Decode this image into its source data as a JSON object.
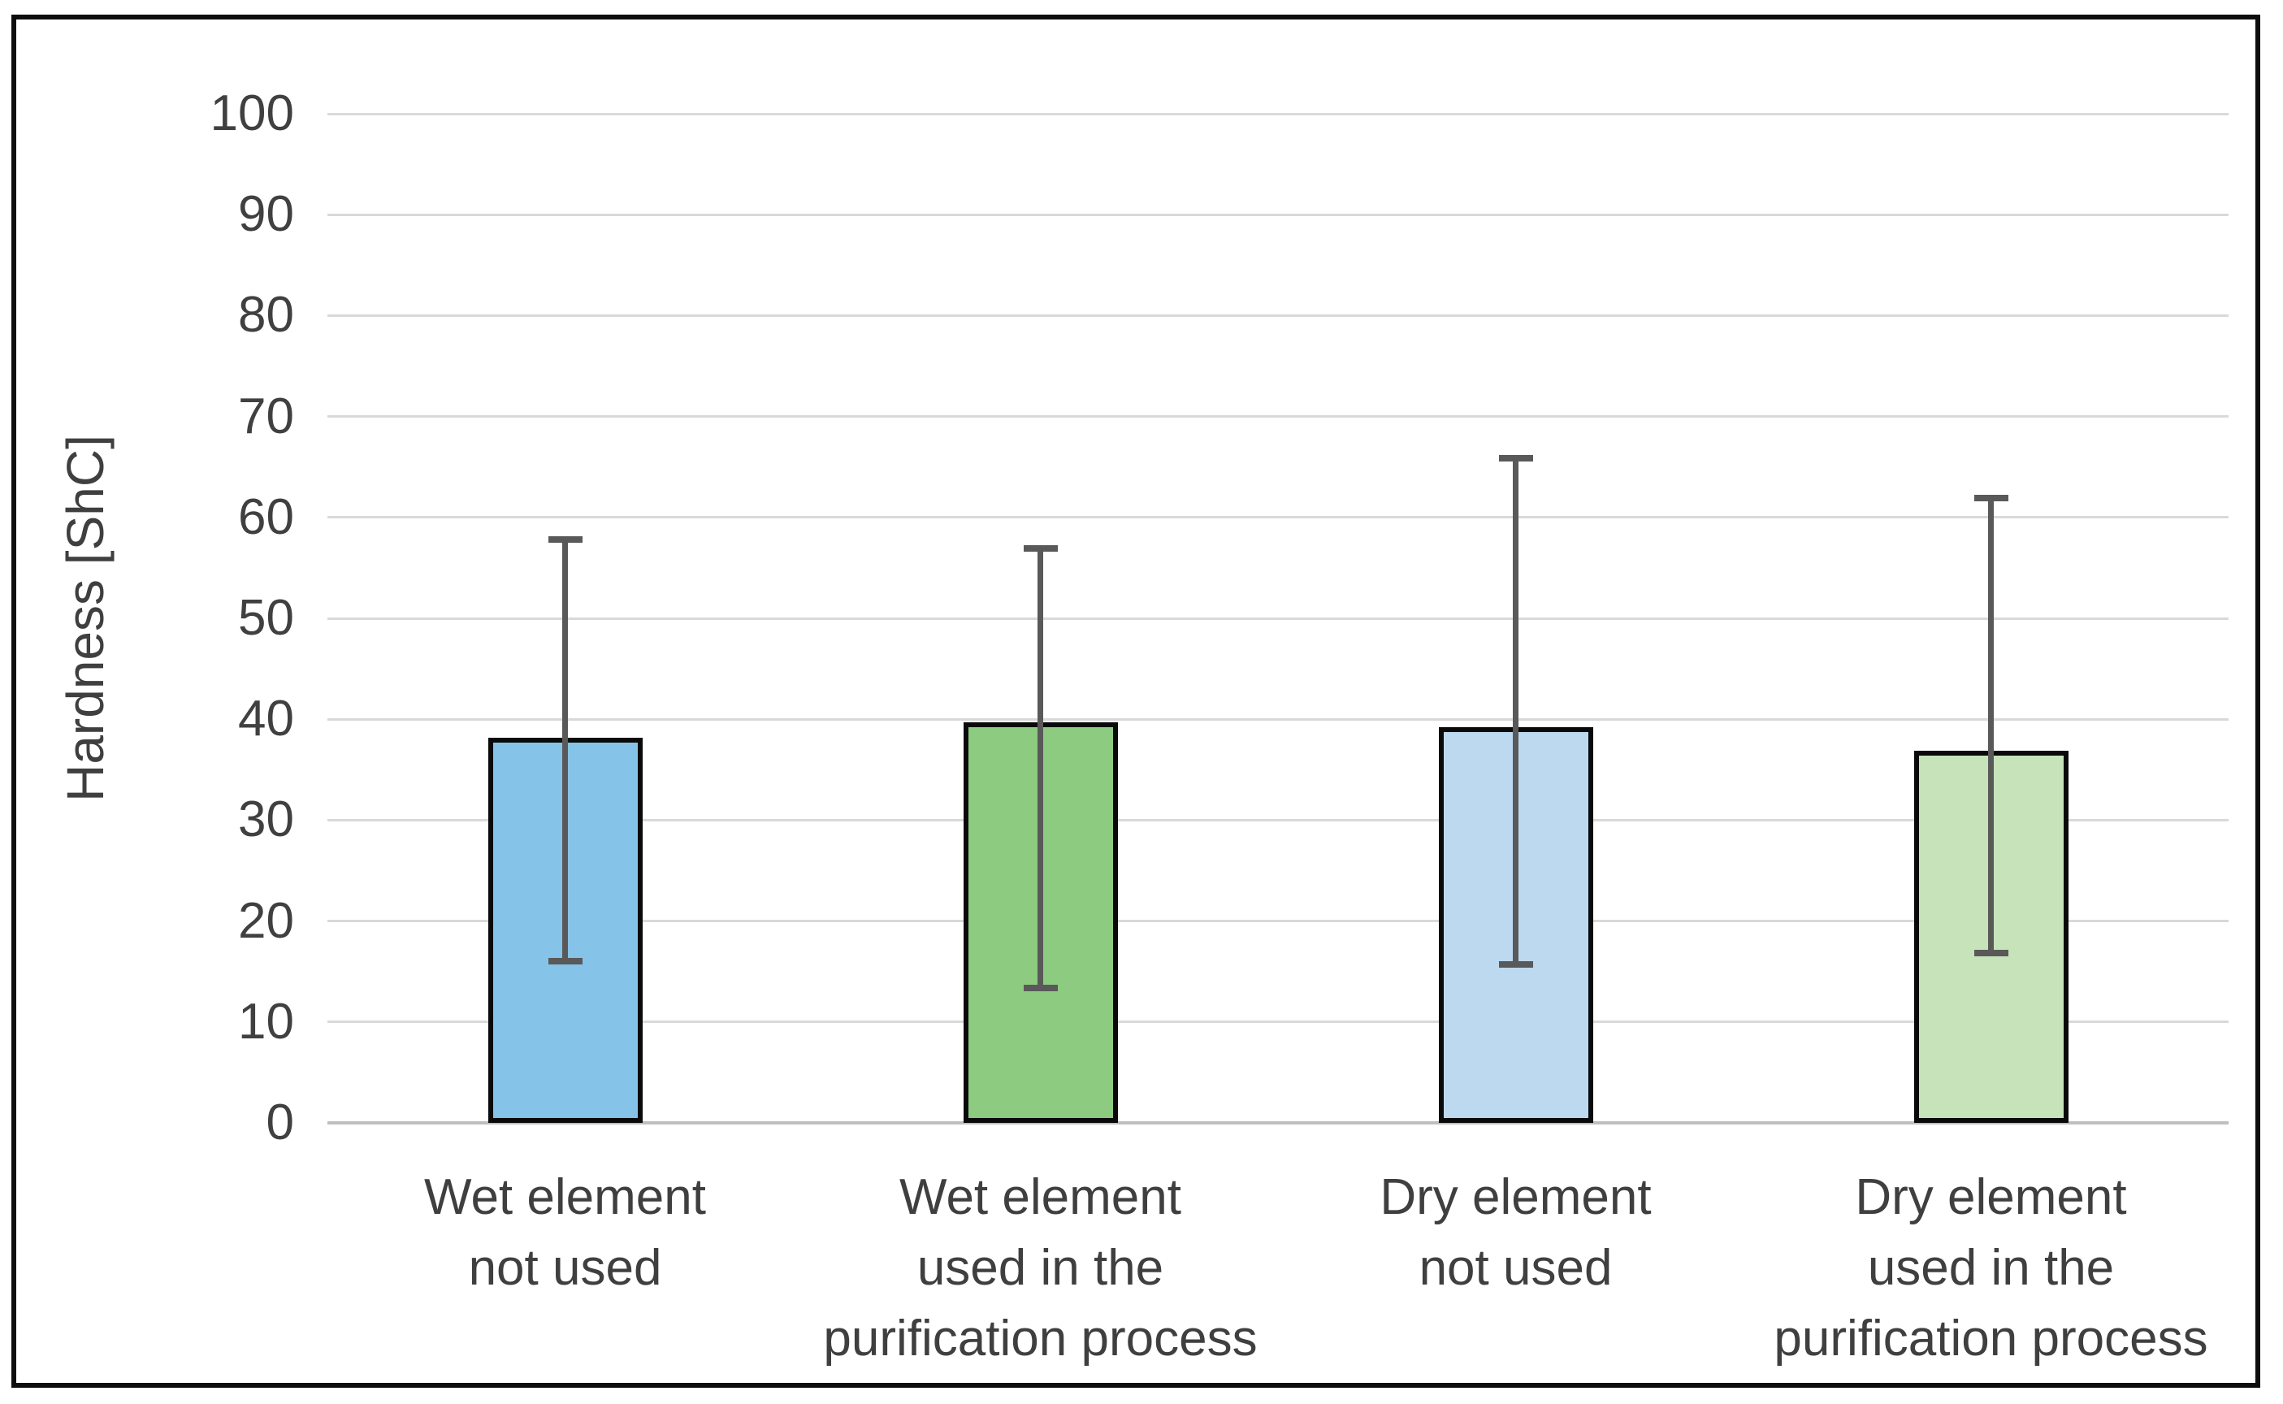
{
  "figure": {
    "background_color": "#ffffff",
    "frame_border_color": "#0d0d0d"
  },
  "chart_data": {
    "type": "bar",
    "title": "",
    "xlabel": "",
    "ylabel": "Hardness [ShC]",
    "ylim": [
      0,
      100
    ],
    "yticks": [
      0,
      10,
      20,
      30,
      40,
      50,
      60,
      70,
      80,
      90,
      100
    ],
    "grid": true,
    "legend": false,
    "categories": [
      "Wet element\nnot used",
      "Wet element\nused in the\npurification process",
      "Dry element\nnot used",
      "Dry element\nused in the\npurification process"
    ],
    "values": [
      38.2,
      39.7,
      39.2,
      36.9
    ],
    "error_low": [
      16.0,
      13.4,
      15.7,
      16.8
    ],
    "error_high": [
      57.8,
      56.9,
      65.9,
      61.9
    ],
    "bar_colors": [
      "#85C3E8",
      "#8CCB80",
      "#BCD9F0",
      "#C6E3BA"
    ],
    "bar_border_color": "#0a0a0a",
    "error_bar_color": "#595959",
    "gridline_color": "#d9d9d9",
    "zero_line_color": "#bfbfbf",
    "axis_text_color": "#404040"
  }
}
